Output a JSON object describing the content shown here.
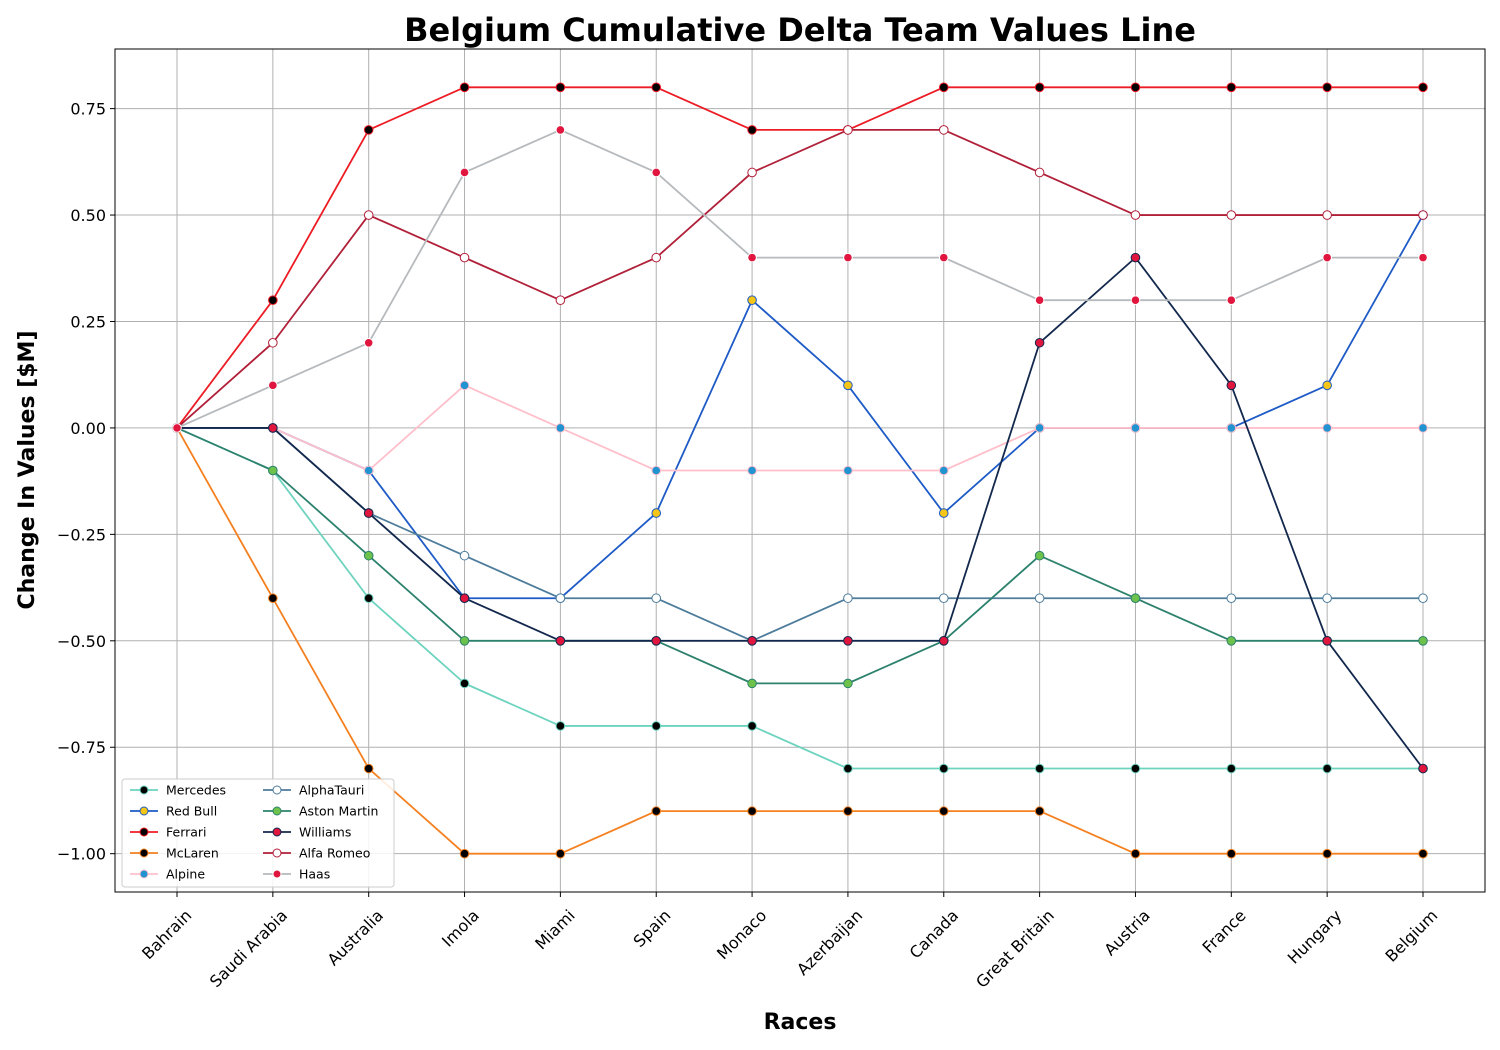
{
  "chart_data": {
    "type": "line",
    "title": "Belgium Cumulative Delta Team Values Line",
    "xlabel": "Races",
    "ylabel": "Change In Values [$M]",
    "categories": [
      "Bahrain",
      "Saudi Arabia",
      "Australia",
      "Imola",
      "Miami",
      "Spain",
      "Monaco",
      "Azerbaijan",
      "Canada",
      "Great Britain",
      "Austria",
      "France",
      "Hungary",
      "Belgium"
    ],
    "ylim": [
      -1.09,
      0.89
    ],
    "yticks": [
      -1.0,
      -0.75,
      -0.5,
      -0.25,
      0.0,
      0.25,
      0.5,
      0.75
    ],
    "ytick_labels": [
      "−1.00",
      "−0.75",
      "−0.50",
      "−0.25",
      "0.00",
      "0.25",
      "0.50",
      "0.75"
    ],
    "grid": true,
    "legend_position": "lower-left",
    "legend_columns": 2,
    "series": [
      {
        "name": "Mercedes",
        "line_color": "#6cd3bf",
        "marker_fill": "#000000",
        "marker_edge": "#6cd3bf",
        "values": [
          0.0,
          -0.1,
          -0.4,
          -0.6,
          -0.7,
          -0.7,
          -0.7,
          -0.8,
          -0.8,
          -0.8,
          -0.8,
          -0.8,
          -0.8,
          -0.8
        ]
      },
      {
        "name": "Red Bull",
        "line_color": "#1e5bc6",
        "marker_fill": "#f5c518",
        "marker_edge": "#1e5bc6",
        "values": [
          0.0,
          0.0,
          -0.1,
          -0.4,
          -0.4,
          -0.2,
          0.3,
          0.1,
          -0.2,
          0.0,
          0.0,
          0.0,
          0.1,
          0.5
        ]
      },
      {
        "name": "Ferrari",
        "line_color": "#ed1c24",
        "marker_fill": "#000000",
        "marker_edge": "#ed1c24",
        "values": [
          0.0,
          0.3,
          0.7,
          0.8,
          0.8,
          0.8,
          0.7,
          0.7,
          0.8,
          0.8,
          0.8,
          0.8,
          0.8,
          0.8
        ]
      },
      {
        "name": "McLaren",
        "line_color": "#f58020",
        "marker_fill": "#000000",
        "marker_edge": "#f58020",
        "values": [
          0.0,
          -0.4,
          -0.8,
          -1.0,
          -1.0,
          -0.9,
          -0.9,
          -0.9,
          -0.9,
          -0.9,
          -1.0,
          -1.0,
          -1.0,
          -1.0
        ]
      },
      {
        "name": "Alpine",
        "line_color": "#ffc0cb",
        "marker_fill": "#2293d1",
        "marker_edge": "#ffc0cb",
        "values": [
          0.0,
          0.0,
          -0.1,
          0.1,
          0.0,
          -0.1,
          -0.1,
          -0.1,
          -0.1,
          0.0,
          0.0,
          0.0,
          0.0,
          0.0
        ]
      },
      {
        "name": "AlphaTauri",
        "line_color": "#4e7c9b",
        "marker_fill": "#ffffff",
        "marker_edge": "#4e7c9b",
        "values": [
          0.0,
          0.0,
          -0.2,
          -0.3,
          -0.4,
          -0.4,
          -0.5,
          -0.4,
          -0.4,
          -0.4,
          -0.4,
          -0.4,
          -0.4,
          -0.4
        ]
      },
      {
        "name": "Aston Martin",
        "line_color": "#2d826d",
        "marker_fill": "#6cc24a",
        "marker_edge": "#2d826d",
        "values": [
          0.0,
          -0.1,
          -0.3,
          -0.5,
          -0.5,
          -0.5,
          -0.6,
          -0.6,
          -0.5,
          -0.3,
          -0.4,
          -0.5,
          -0.5,
          -0.5
        ]
      },
      {
        "name": "Williams",
        "line_color": "#13284d",
        "marker_fill": "#e0163f",
        "marker_edge": "#13284d",
        "values": [
          0.0,
          0.0,
          -0.2,
          -0.4,
          -0.5,
          -0.5,
          -0.5,
          -0.5,
          -0.5,
          0.2,
          0.4,
          0.1,
          -0.5,
          -0.8
        ]
      },
      {
        "name": "Alfa Romeo",
        "line_color": "#b12039",
        "marker_fill": "#ffffff",
        "marker_edge": "#b12039",
        "values": [
          0.0,
          0.2,
          0.5,
          0.4,
          0.3,
          0.4,
          0.6,
          0.7,
          0.7,
          0.6,
          0.5,
          0.5,
          0.5,
          0.5
        ]
      },
      {
        "name": "Haas",
        "line_color": "#b6babd",
        "marker_fill": "#e0163f",
        "marker_edge": "#ffffff",
        "values": [
          0.0,
          0.1,
          0.2,
          0.6,
          0.7,
          0.6,
          0.4,
          0.4,
          0.4,
          0.3,
          0.3,
          0.3,
          0.4,
          0.4
        ]
      }
    ]
  }
}
